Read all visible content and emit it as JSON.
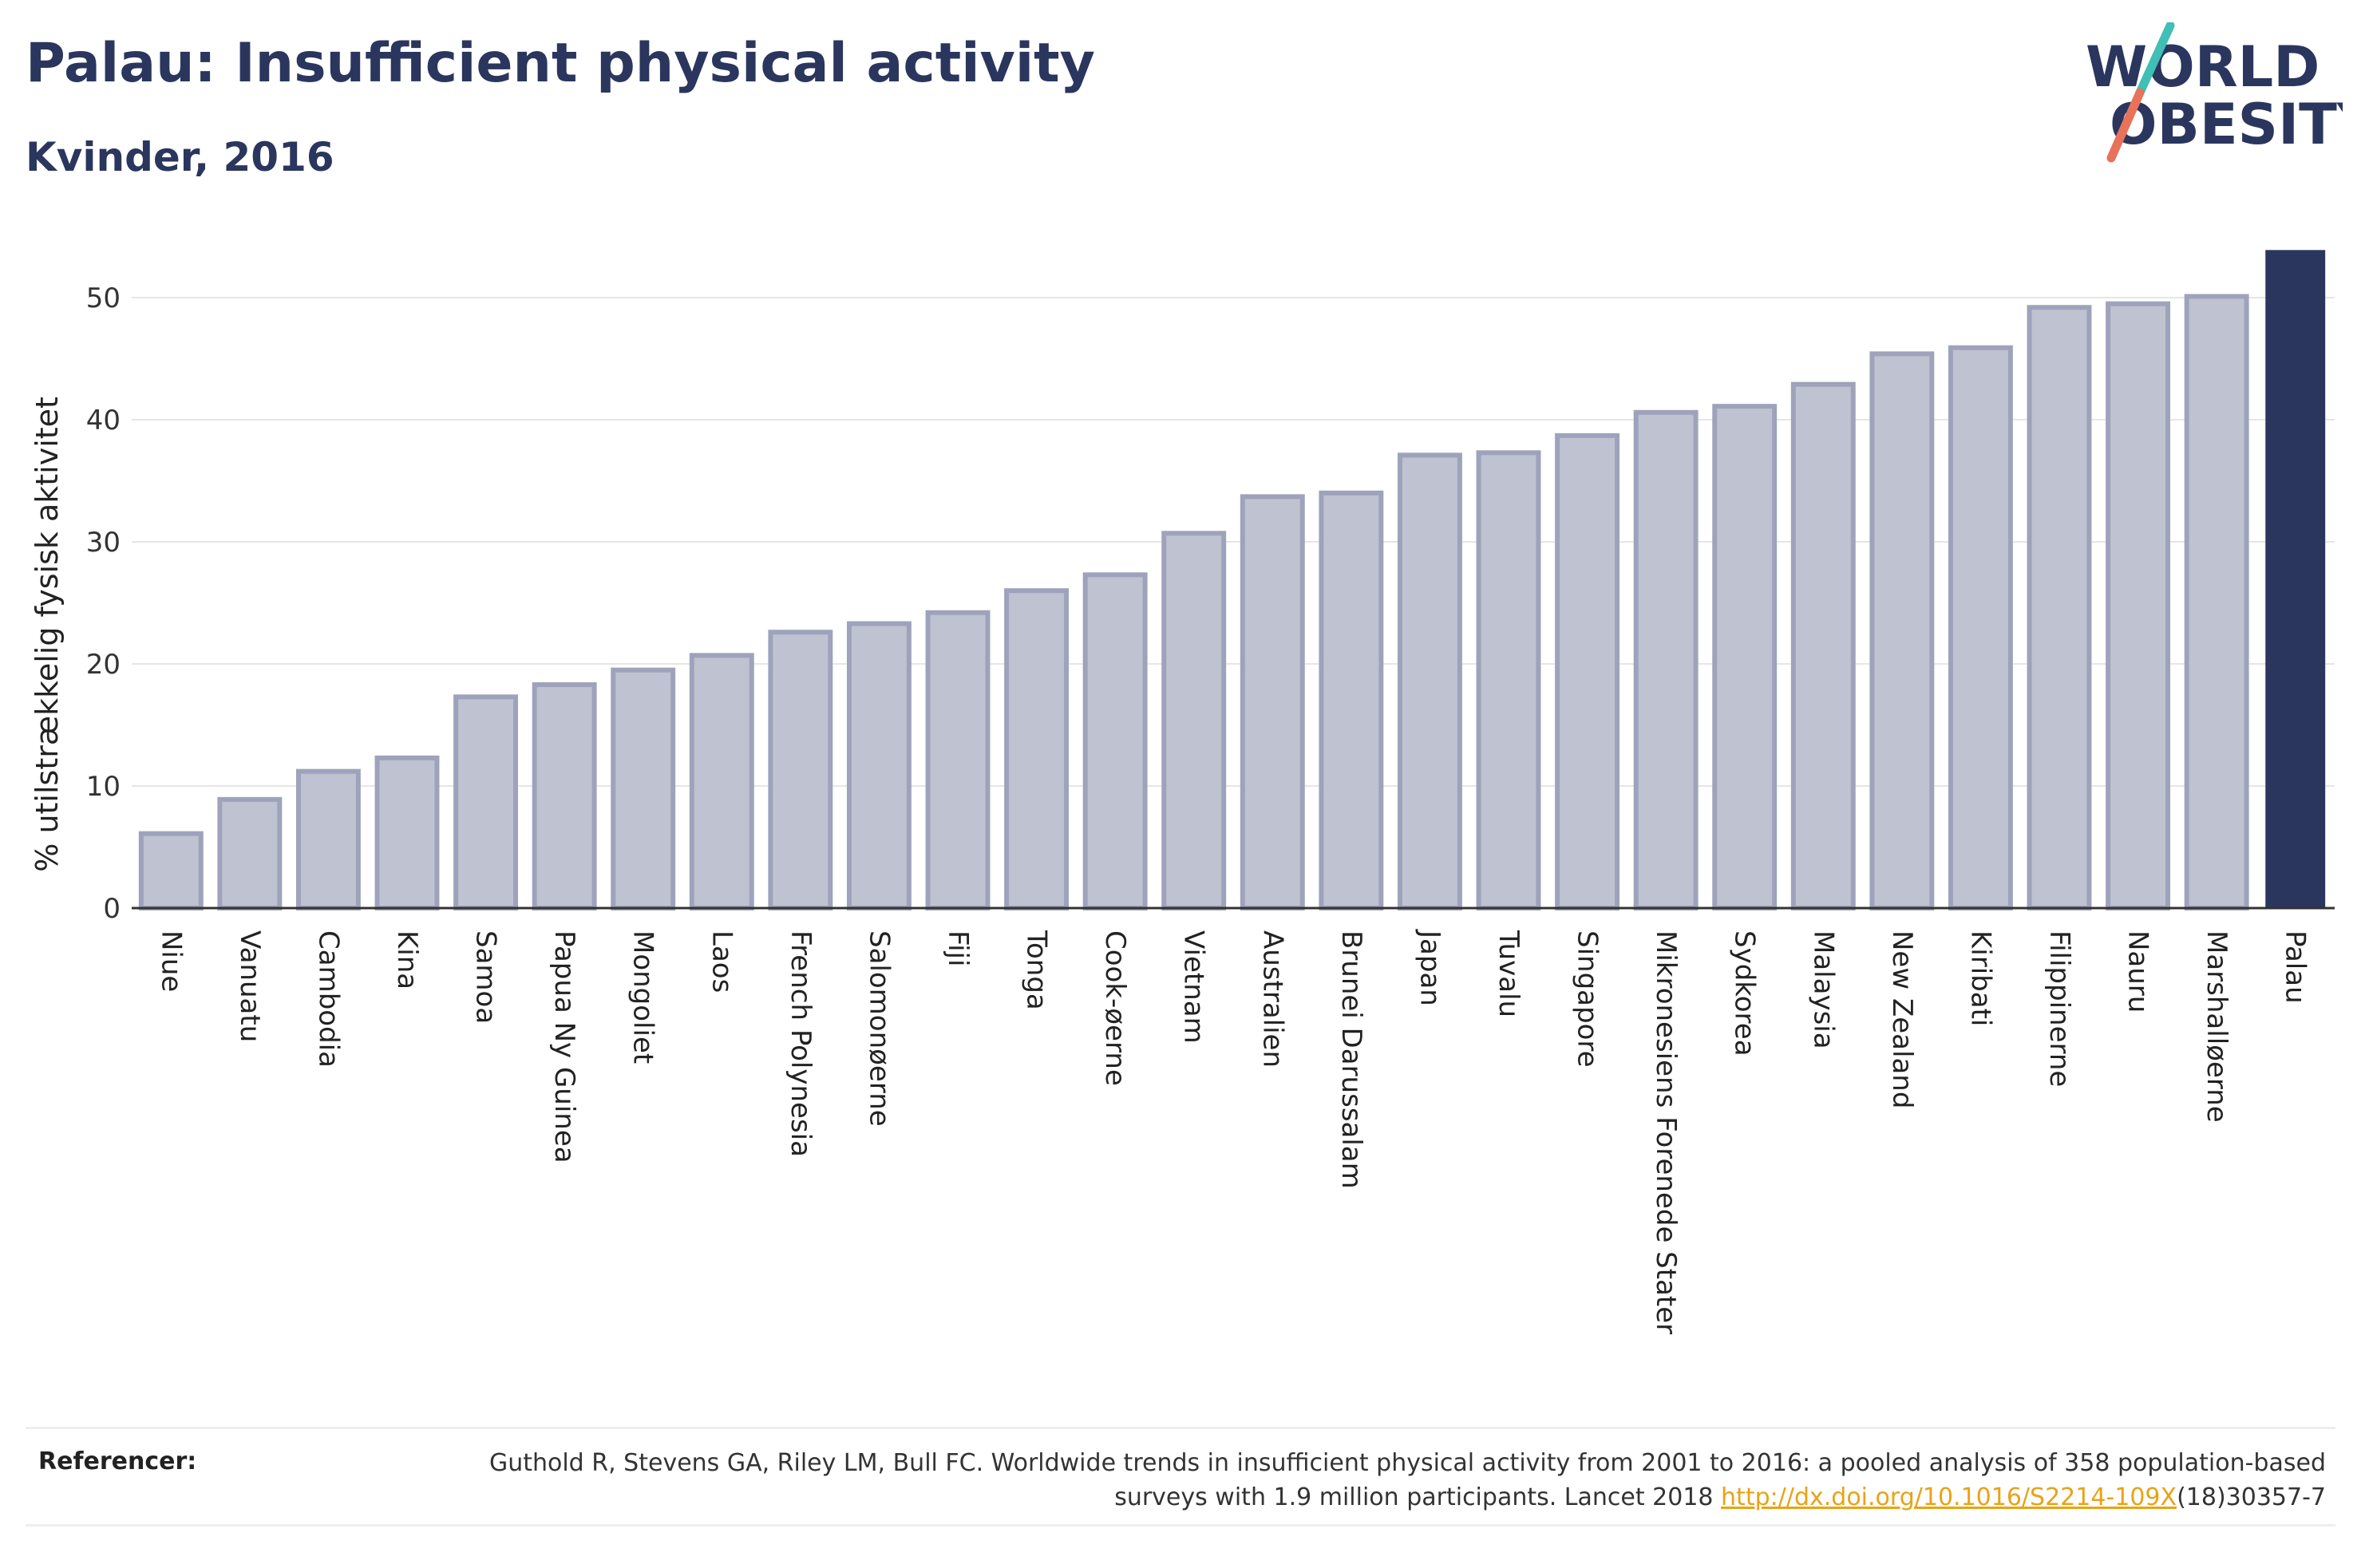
{
  "header": {
    "title": "Palau: Insufficient physical activity",
    "subtitle": "Kvinder, 2016"
  },
  "logo": {
    "line1": "WORLD",
    "line2": "OBESITY",
    "colors": {
      "text": "#2b365e",
      "slash_top": "#3fbfb5",
      "slash_bottom": "#e8735a"
    }
  },
  "chart_data": {
    "type": "bar",
    "ylabel": "% utilstrækkelig fysisk aktivitet",
    "ylim": [
      0,
      54
    ],
    "yticks": [
      0,
      10,
      20,
      30,
      40,
      50
    ],
    "grid": true,
    "categories": [
      "Niue",
      "Vanuatu",
      "Cambodia",
      "Kina",
      "Samoa",
      "Papua Ny Guinea",
      "Mongoliet",
      "Laos",
      "French Polynesia",
      "Salomonøerne",
      "Fiji",
      "Tonga",
      "Cook-øerne",
      "Vietnam",
      "Australien",
      "Brunei Darussalam",
      "Japan",
      "Tuvalu",
      "Singapore",
      "Mikronesiens Forenede Stater",
      "Sydkorea",
      "Malaysia",
      "New Zealand",
      "Kiribati",
      "Filippinerne",
      "Nauru",
      "Marshalløerne",
      "Palau"
    ],
    "values": [
      6.1,
      8.9,
      11.2,
      12.3,
      17.3,
      18.3,
      19.5,
      20.7,
      22.6,
      23.3,
      24.2,
      26.0,
      27.3,
      30.7,
      33.7,
      34.0,
      37.1,
      37.3,
      38.7,
      40.6,
      41.1,
      42.9,
      45.4,
      45.9,
      49.2,
      49.5,
      50.1,
      53.9
    ],
    "highlight": "Palau",
    "colors": {
      "bar": "#bfc2d0",
      "bar_border": "#9ea3bb",
      "highlight": "#2b365e",
      "grid": "#e6e6e6",
      "axis": "#333333"
    }
  },
  "footer": {
    "label": "Referencer:",
    "text_pre": "Guthold R, Stevens GA, Riley LM, Bull FC. Worldwide trends in insufficient physical activity from 2001 to 2016: a pooled analysis of 358 population-based surveys with 1.9 million participants. Lancet 2018 ",
    "link": "http://dx.doi.org/10.1016/S2214-109X",
    "text_post": "(18)30357-7"
  }
}
